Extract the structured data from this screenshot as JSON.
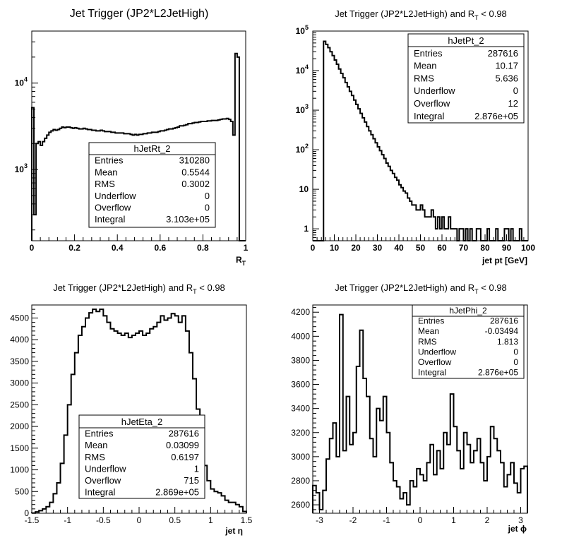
{
  "chart_data": [
    {
      "type": "histogram",
      "title": "Jet Trigger (JP2*L2JetHigh)",
      "xlabel_main": "R",
      "xlabel_sub": "T",
      "xlim": [
        0,
        1
      ],
      "ylim": [
        150,
        40000
      ],
      "ylog": true,
      "xticks": [
        "0",
        "0.2",
        "0.4",
        "0.6",
        "0.8",
        "1"
      ],
      "yticks": [
        {
          "base": "10",
          "exp": "3"
        },
        {
          "base": "10",
          "exp": "4"
        }
      ],
      "stats": {
        "name": "hJetRt_2",
        "rows": [
          [
            "Entries",
            "310280"
          ],
          [
            "Mean",
            "0.5544"
          ],
          [
            "RMS",
            "0.3002"
          ],
          [
            "Underflow",
            "0"
          ],
          [
            "Overflow",
            "0"
          ],
          [
            "Integral",
            "3.103e+05"
          ]
        ]
      },
      "binning": {
        "xmin": 0,
        "xmax": 1,
        "nbins": 100
      },
      "values": [
        5200,
        300,
        2000,
        2100,
        1900,
        2100,
        2300,
        2500,
        2700,
        2800,
        2900,
        2850,
        2900,
        3000,
        3100,
        3050,
        3100,
        3100,
        3050,
        3000,
        3050,
        3000,
        2950,
        2950,
        3000,
        2950,
        2900,
        2900,
        2850,
        2850,
        2800,
        2800,
        2850,
        2800,
        2750,
        2750,
        2750,
        2700,
        2700,
        2650,
        2650,
        2650,
        2650,
        2600,
        2600,
        2600,
        2550,
        2500,
        2550,
        2500,
        2550,
        2550,
        2600,
        2600,
        2650,
        2650,
        2700,
        2700,
        2700,
        2750,
        2800,
        2800,
        2850,
        2900,
        2950,
        2950,
        3000,
        3050,
        3100,
        3200,
        3200,
        3250,
        3300,
        3400,
        3400,
        3450,
        3500,
        3500,
        3550,
        3600,
        3600,
        3600,
        3650,
        3650,
        3700,
        3700,
        3700,
        3750,
        3800,
        3850,
        3850,
        3900,
        3800,
        3600,
        2500,
        22000,
        20000,
        0,
        0,
        0
      ]
    },
    {
      "type": "histogram",
      "title_prefix": "Jet Trigger (JP2*L2JetHigh) and R",
      "title_sub": "T",
      "title_suffix": " < 0.98",
      "xlabel": "jet pt [GeV]",
      "xlim": [
        0,
        100
      ],
      "ylim": [
        0.5,
        100000
      ],
      "ylog": true,
      "xticks": [
        "0",
        "10",
        "20",
        "30",
        "40",
        "50",
        "60",
        "70",
        "80",
        "90",
        "100"
      ],
      "yticks": [
        {
          "base": "1",
          "exp": ""
        },
        {
          "base": "10",
          "exp": ""
        },
        {
          "base": "10",
          "exp": "2"
        },
        {
          "base": "10",
          "exp": "3"
        },
        {
          "base": "10",
          "exp": "4"
        },
        {
          "base": "10",
          "exp": "5"
        }
      ],
      "stats": {
        "name": "hJetPt_2",
        "rows": [
          [
            "Entries",
            "287616"
          ],
          [
            "Mean",
            "10.17"
          ],
          [
            "RMS",
            "5.636"
          ],
          [
            "Underflow",
            "0"
          ],
          [
            "Overflow",
            "12"
          ],
          [
            "Integral",
            "2.876e+05"
          ]
        ]
      },
      "binning": {
        "xmin": 0,
        "xmax": 100,
        "nbins": 100
      },
      "values": [
        0,
        0,
        0,
        0,
        0,
        55000,
        46000,
        38000,
        30000,
        24000,
        18500,
        14500,
        11000,
        8500,
        6600,
        5000,
        3900,
        3000,
        2350,
        1800,
        1400,
        1080,
        830,
        640,
        500,
        385,
        300,
        240,
        190,
        150,
        118,
        95,
        75,
        60,
        46,
        38,
        30,
        25,
        20,
        17,
        13,
        11,
        9,
        8,
        6,
        5,
        4,
        4,
        3,
        3,
        4,
        3,
        2,
        2,
        2,
        3,
        2,
        1,
        2,
        1,
        2,
        1,
        1,
        2,
        1,
        1,
        1,
        0,
        1,
        1,
        0,
        1,
        0,
        1,
        0,
        0,
        1,
        1,
        0,
        0,
        0,
        1,
        0,
        0,
        0,
        1,
        0,
        0,
        0,
        1,
        1,
        0,
        1,
        0,
        0,
        0,
        1,
        0,
        0,
        0
      ]
    },
    {
      "type": "histogram",
      "title_prefix": "Jet Trigger (JP2*L2JetHigh) and R",
      "title_sub": "T",
      "title_suffix": " < 0.98",
      "xlabel": "jet η",
      "xlim": [
        -1.5,
        1.5
      ],
      "ylim": [
        0,
        4800
      ],
      "ylog": false,
      "xticks": [
        "-1.5",
        "-1",
        "-0.5",
        "0",
        "0.5",
        "1",
        "1.5"
      ],
      "yticks": [
        "0",
        "500",
        "1000",
        "1500",
        "2000",
        "2500",
        "3000",
        "3500",
        "4000",
        "4500"
      ],
      "stats": {
        "name": "hJetEta_2",
        "rows": [
          [
            "Entries",
            "287616"
          ],
          [
            "Mean",
            "0.03099"
          ],
          [
            "RMS",
            "0.6197"
          ],
          [
            "Underflow",
            "1"
          ],
          [
            "Overflow",
            "715"
          ],
          [
            "Integral",
            "2.869e+05"
          ]
        ]
      },
      "binning": {
        "xmin": -1.5,
        "xmax": 1.5,
        "nbins": 60
      },
      "values": [
        5,
        30,
        60,
        100,
        150,
        250,
        450,
        700,
        1150,
        1800,
        2500,
        3200,
        3700,
        4100,
        4300,
        4500,
        4620,
        4700,
        4650,
        4700,
        4550,
        4400,
        4250,
        4200,
        4150,
        4100,
        4150,
        4050,
        4100,
        4150,
        4200,
        4100,
        4150,
        4250,
        4300,
        4400,
        4550,
        4450,
        4500,
        4600,
        4550,
        4400,
        4550,
        4200,
        3700,
        3100,
        2400,
        1700,
        1100,
        750,
        560,
        500,
        470,
        400,
        300,
        250,
        250,
        200,
        150,
        40
      ]
    },
    {
      "type": "histogram",
      "title_prefix": "Jet Trigger (JP2*L2JetHigh) and R",
      "title_sub": "T",
      "title_suffix": " < 0.98",
      "xlabel": "jet ϕ",
      "xlim": [
        -3.2,
        3.2
      ],
      "ylim": [
        2530,
        4260
      ],
      "ylog": false,
      "xticks": [
        "-3",
        "-2",
        "-1",
        "0",
        "1",
        "2",
        "3"
      ],
      "yticks": [
        "2600",
        "2800",
        "3000",
        "3200",
        "3400",
        "3600",
        "3800",
        "4000",
        "4200"
      ],
      "stats": {
        "name": "hJetPhi_2",
        "rows": [
          [
            "Entries",
            "287616"
          ],
          [
            "Mean",
            "-0.03494"
          ],
          [
            "RMS",
            "1.813"
          ],
          [
            "Underflow",
            "0"
          ],
          [
            "Overflow",
            "0"
          ],
          [
            "Integral",
            "2.876e+05"
          ]
        ]
      },
      "binning": {
        "xmin": -3.2,
        "xmax": 3.2,
        "nbins": 64
      },
      "values": [
        2760,
        2700,
        2560,
        2720,
        2980,
        3150,
        3280,
        3000,
        4180,
        3050,
        3500,
        3100,
        3200,
        3750,
        4050,
        3650,
        3500,
        3150,
        3000,
        3400,
        3300,
        3500,
        3200,
        2950,
        2800,
        2750,
        2650,
        2700,
        2600,
        2800,
        2750,
        2900,
        2850,
        2800,
        2950,
        3100,
        2850,
        3050,
        2900,
        3200,
        3100,
        3520,
        3250,
        3050,
        2900,
        3200,
        3100,
        2950,
        3050,
        3150,
        2950,
        2800,
        3000,
        3250,
        3150,
        3050,
        2950,
        2750,
        2850,
        2950,
        2780,
        2700,
        2900,
        2920
      ]
    }
  ]
}
